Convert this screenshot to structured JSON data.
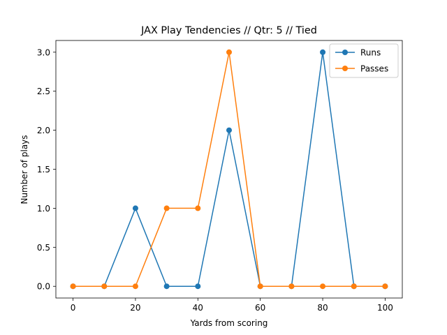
{
  "chart_data": {
    "type": "line",
    "title": "JAX Play Tendencies // Qtr: 5 // Tied",
    "xlabel": "Yards from scoring",
    "ylabel": "Number of plays",
    "x": [
      0,
      10,
      20,
      30,
      40,
      50,
      60,
      70,
      80,
      90,
      100
    ],
    "xlim": [
      -5.5,
      105.5
    ],
    "ylim": [
      -0.15,
      3.15
    ],
    "xticks": [
      0,
      20,
      40,
      60,
      80,
      100
    ],
    "xtick_labels": [
      "0",
      "20",
      "40",
      "60",
      "80",
      "100"
    ],
    "yticks": [
      0,
      0.5,
      1,
      1.5,
      2,
      2.5,
      3
    ],
    "ytick_labels": [
      "0.0",
      "0.5",
      "1.0",
      "1.5",
      "2.0",
      "2.5",
      "3.0"
    ],
    "grid": false,
    "legend_position": "top-right",
    "series": [
      {
        "name": "Runs",
        "color": "#1f77b4",
        "marker": "circle",
        "values": [
          0,
          0,
          1,
          0,
          0,
          2,
          0,
          0,
          3,
          0,
          0
        ]
      },
      {
        "name": "Passes",
        "color": "#ff7f0e",
        "marker": "circle",
        "values": [
          0,
          0,
          0,
          1,
          1,
          3,
          0,
          0,
          0,
          0,
          0
        ]
      }
    ]
  }
}
